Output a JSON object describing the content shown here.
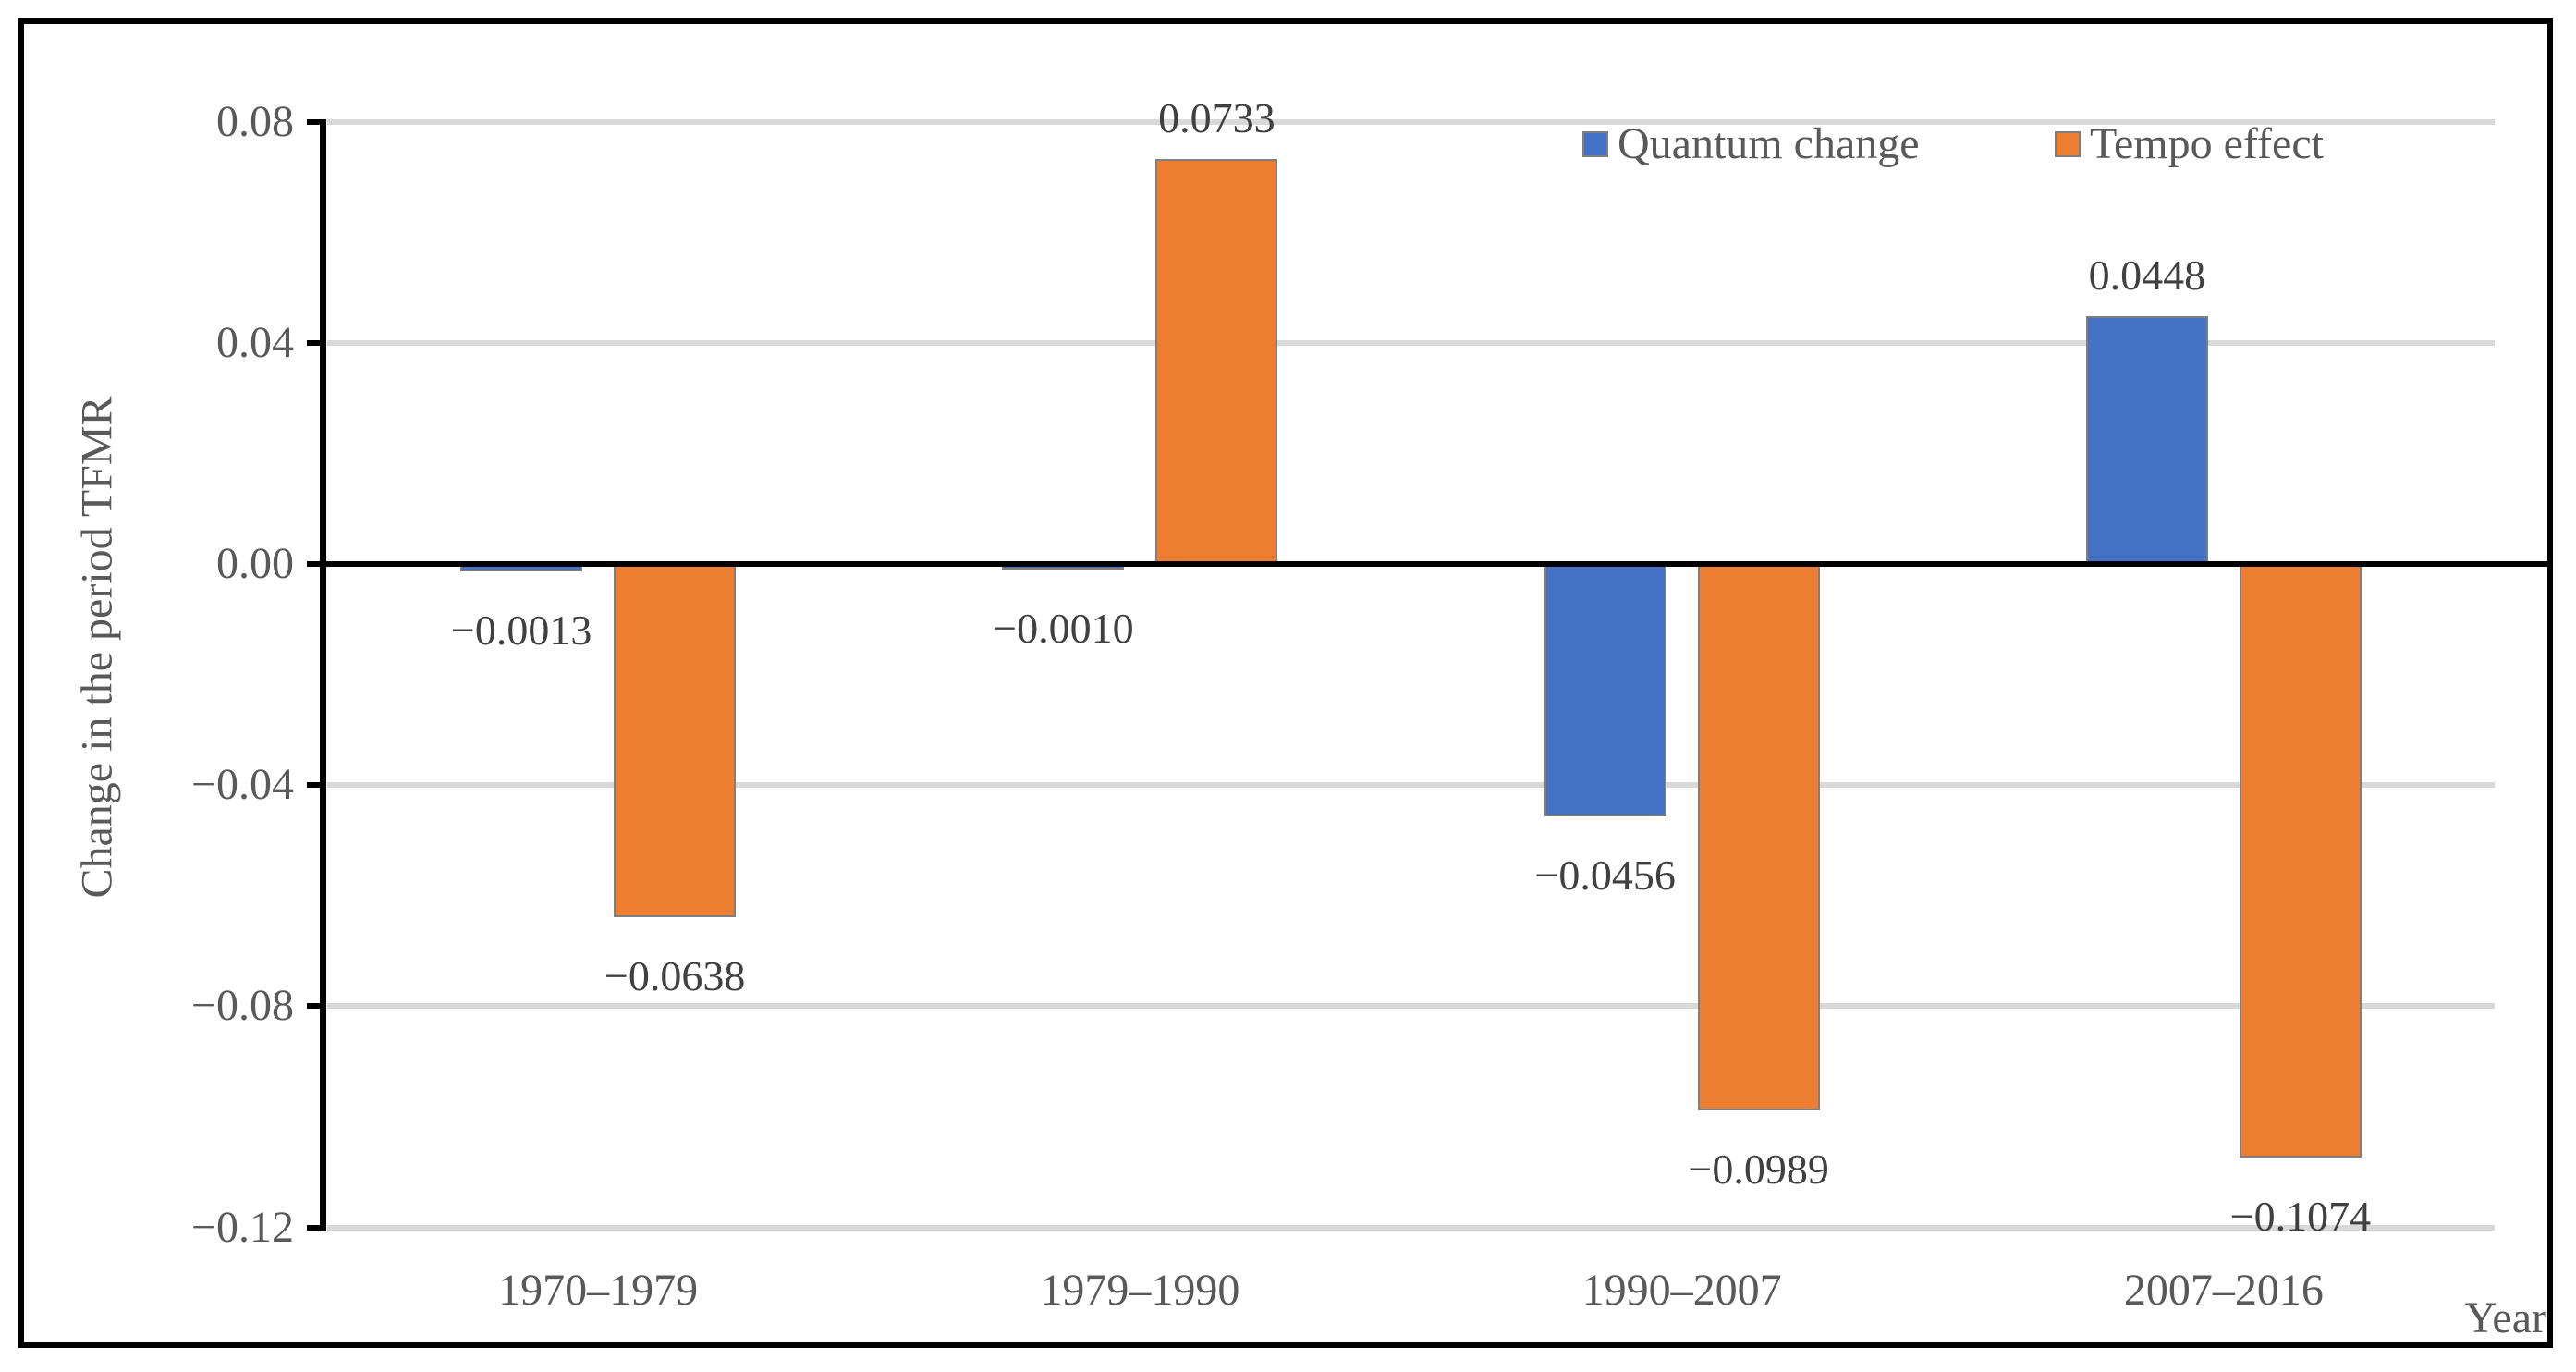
{
  "chart_data": {
    "type": "bar",
    "title": "",
    "categories": [
      "1970–1979",
      "1979–1990",
      "1990–2007",
      "2007–2016"
    ],
    "series": [
      {
        "name": "Quantum change",
        "color": "#4472C4",
        "values": [
          -0.0013,
          -0.001,
          -0.0456,
          0.0448
        ],
        "labels": [
          "−0.0013",
          "−0.0010",
          "−0.0456",
          "0.0448"
        ]
      },
      {
        "name": "Tempo effect",
        "color": "#ED7D31",
        "values": [
          -0.0638,
          0.0733,
          -0.0989,
          -0.1074
        ],
        "labels": [
          "−0.0638",
          "0.0733",
          "−0.0989",
          "−0.1074"
        ]
      }
    ],
    "xlabel": "Year",
    "ylabel": "Change in the period TFMR",
    "ylim": [
      -0.12,
      0.08
    ],
    "ytick_interval": 0.04,
    "ytick_values": [
      0.08,
      0.04,
      0.0,
      -0.04,
      -0.08,
      -0.12
    ],
    "ytick_labels": [
      "0.08",
      "0.04",
      "0.00",
      "−0.04",
      "−0.08",
      "−0.12"
    ],
    "grid": true,
    "gridline_color": "#D9D9D9",
    "axis_line_color": "#000000",
    "tick_text_color": "#595959",
    "data_label_color": "#404040",
    "bar_border_color": "#7F7F7F",
    "legend_position": "top-right",
    "plot_background": "#FFFFFF",
    "frame_border_color": "#000000"
  }
}
